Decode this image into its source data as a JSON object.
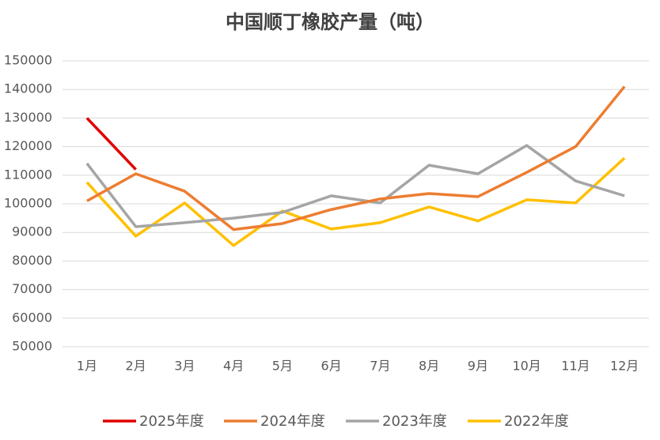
{
  "chart_data": {
    "type": "line",
    "title": "中国顺丁橡胶产量（吨）",
    "categories": [
      "1月",
      "2月",
      "3月",
      "4月",
      "5月",
      "6月",
      "7月",
      "8月",
      "9月",
      "10月",
      "11月",
      "12月"
    ],
    "series": [
      {
        "name": "2025年度",
        "color": "#e00000",
        "values": [
          130000,
          112000,
          null,
          null,
          null,
          null,
          null,
          null,
          null,
          null,
          null,
          null
        ]
      },
      {
        "name": "2024年度",
        "color": "#ed7d31",
        "values": [
          101000,
          110500,
          104400,
          91000,
          93100,
          98000,
          101700,
          103600,
          102500,
          111000,
          120000,
          141000
        ]
      },
      {
        "name": "2023年度",
        "color": "#a5a5a5",
        "values": [
          114100,
          92000,
          93400,
          95000,
          97000,
          102800,
          100300,
          113500,
          110500,
          120400,
          108000,
          102800
        ]
      },
      {
        "name": "2022年度",
        "color": "#ffc000",
        "values": [
          107500,
          88700,
          100300,
          85400,
          97500,
          91200,
          93400,
          98900,
          94000,
          101400,
          100300,
          116000
        ]
      }
    ],
    "ylim": [
      50000,
      150000
    ],
    "yticks": [
      50000,
      60000,
      70000,
      80000,
      90000,
      100000,
      110000,
      120000,
      130000,
      140000,
      150000
    ],
    "grid": true,
    "legend": "bottom"
  }
}
